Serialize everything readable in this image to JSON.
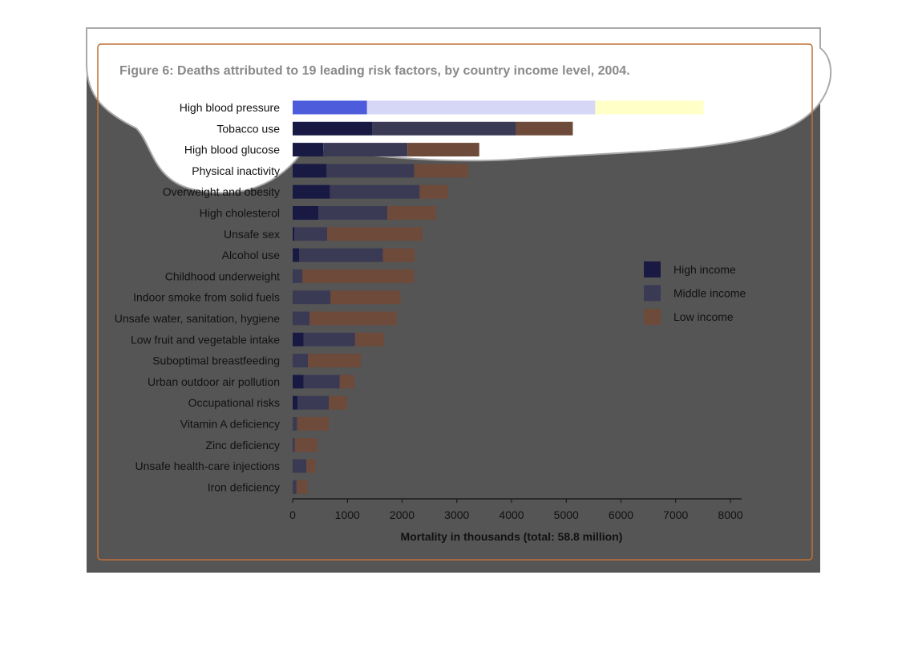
{
  "figure": {
    "title": "Figure 6: Deaths attributed to 19 leading risk factors, by country income level, 2004."
  },
  "colors": {
    "overlay": "#555555",
    "frame": "#c0703a",
    "high_income": "#181a44",
    "middle_income": "#3a3a55",
    "low_income": "#6d4a3a",
    "axis": "#111111",
    "highlight_high": "#4d5cdb",
    "highlight_middle": "#d6d6f7",
    "highlight_low": "#ffffc8"
  },
  "chart_data": {
    "type": "bar",
    "orientation": "horizontal",
    "stacked": true,
    "categories": [
      "High blood pressure",
      "Tobacco use",
      "High blood glucose",
      "Physical inactivity",
      "Overweight and obesity",
      "High cholesterol",
      "Unsafe sex",
      "Alcohol use",
      "Childhood underweight",
      "Indoor smoke from solid fuels",
      "Unsafe water, sanitation, hygiene",
      "Low fruit and vegetable intake",
      "Suboptimal breastfeeding",
      "Urban outdoor air pollution",
      "Occupational risks",
      "Vitamin A deficiency",
      "Zinc deficiency",
      "Unsafe health-care injections",
      "Iron deficiency"
    ],
    "series": [
      {
        "name": "High income",
        "values": [
          1360,
          1460,
          560,
          620,
          680,
          470,
          30,
          120,
          0,
          0,
          0,
          200,
          0,
          200,
          90,
          0,
          0,
          0,
          0
        ]
      },
      {
        "name": "Middle income",
        "values": [
          4170,
          2620,
          1540,
          1600,
          1640,
          1260,
          600,
          1530,
          180,
          690,
          310,
          940,
          280,
          660,
          570,
          80,
          40,
          250,
          70
        ]
      },
      {
        "name": "Low income",
        "values": [
          1980,
          1040,
          1310,
          990,
          520,
          890,
          1740,
          580,
          2040,
          1280,
          1590,
          530,
          970,
          270,
          330,
          580,
          410,
          170,
          200
        ]
      }
    ],
    "xlabel": "Mortality in thousands (total: 58.8 million)",
    "ylabel": "",
    "xlim": [
      0,
      8000
    ],
    "xticks": [
      "0",
      "1000",
      "2000",
      "3000",
      "4000",
      "5000",
      "6000",
      "7000",
      "8000"
    ],
    "legend_position": "right",
    "grid": false
  }
}
